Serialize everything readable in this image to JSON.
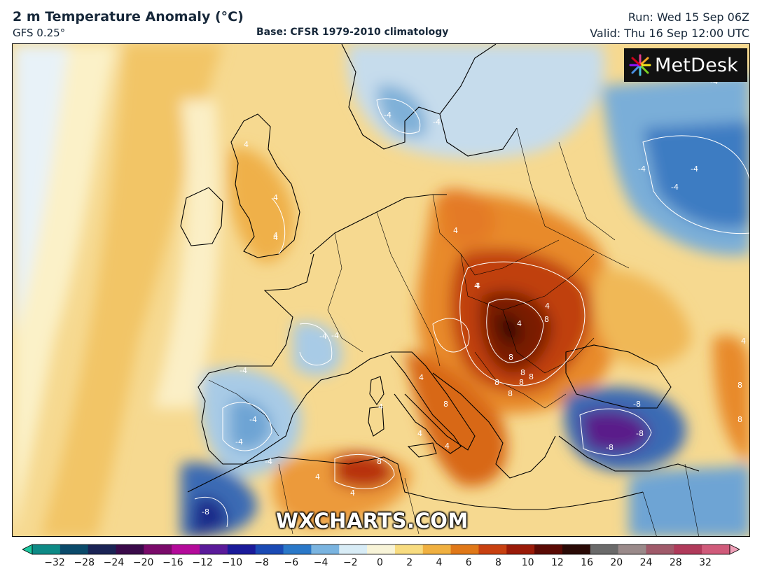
{
  "header": {
    "title": "2 m Temperature Anomaly (°C)",
    "model": "GFS 0.25°",
    "base": "Base: CFSR 1979-2010 climatology",
    "run": "Run: Wed 15 Sep 06Z",
    "valid": "Valid: Thu 16 Sep 12:00 UTC"
  },
  "logo": {
    "text": "MetDesk"
  },
  "watermark": "WXCHARTS.COM",
  "map": {
    "region": "Europe and North Africa",
    "contour_labels": [
      "-4",
      "-4",
      "-4",
      "-4",
      "-4",
      "-4",
      "-4",
      "-4",
      "-4",
      "-4",
      "-4",
      "-4",
      "4",
      "4",
      "4",
      "4",
      "4",
      "4",
      "4",
      "4",
      "4",
      "4",
      "4",
      "4",
      "4",
      "4",
      "4",
      "4",
      "8",
      "8",
      "8",
      "8",
      "8",
      "8",
      "8",
      "8",
      "8",
      "8",
      "8",
      "-8",
      "-8",
      "-8",
      "-8"
    ]
  },
  "colorbar": {
    "ticks": [
      "−32",
      "−28",
      "−24",
      "−20",
      "−16",
      "−12",
      "−10",
      "−8",
      "−6",
      "−4",
      "−2",
      "0",
      "2",
      "4",
      "6",
      "8",
      "10",
      "12",
      "16",
      "20",
      "24",
      "28",
      "32"
    ],
    "colors": [
      "#1cc8a0",
      "#0d8a86",
      "#0a4a6a",
      "#1a2355",
      "#3a0a4a",
      "#7a0a6a",
      "#b40a9a",
      "#5a1a9a",
      "#1a1a9a",
      "#1a4ab4",
      "#2a78c8",
      "#7ab4e0",
      "#d8ecf6",
      "#f8f4d8",
      "#f8dc80",
      "#f0b040",
      "#e07818",
      "#c84010",
      "#9a1a08",
      "#5a0a04",
      "#2a0a06",
      "#6a6a6a",
      "#9a8a8a",
      "#a05a6a",
      "#b03a5a",
      "#d05a7a",
      "#f0a0b8"
    ]
  }
}
